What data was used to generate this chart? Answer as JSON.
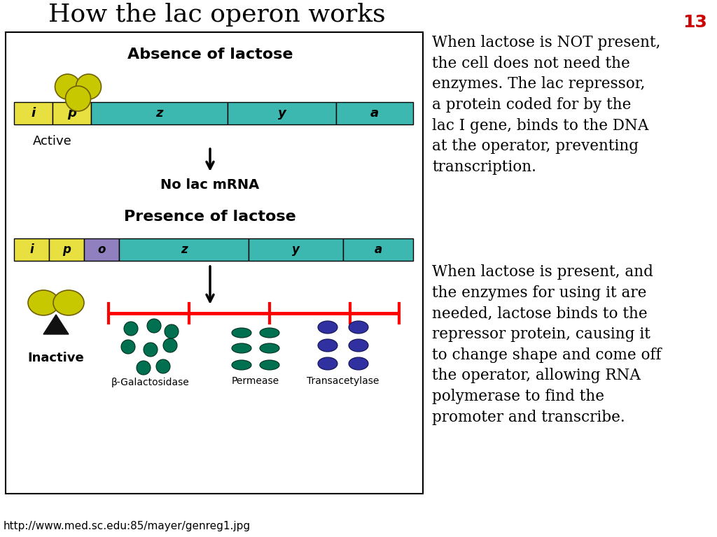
{
  "title": "How the lac operon works",
  "title_fontsize": 26,
  "page_number": "13",
  "page_number_color": "#cc0000",
  "background_color": "#ffffff",
  "url_text": "http://www.med.sc.edu:85/mayer/genreg1.jpg",
  "right_text_para1": "When lactose is NOT present,\nthe cell does not need the\nenzymes. The lac repressor,\na protein coded for by the\nlac I gene, binds to the DNA\nat the operator, preventing\ntranscription.",
  "right_text_para2": "When lactose is present, and\nthe enzymes for using it are\nneeded, lactose binds to the\nrepressor protein, causing it\nto change shape and come off\nthe operator, allowing RNA\npolymerase to find the\npromoter and transcribe.",
  "teal_color": "#3db8b0",
  "yellow_color": "#e8e040",
  "purple_color": "#9080c0",
  "section1_title": "Absence of lactose",
  "section2_title": "Presence of lactose",
  "gene_labels_top": [
    "i",
    "p",
    "z",
    "y",
    "a"
  ],
  "gene_labels_bottom": [
    "i",
    "p",
    "o",
    "z",
    "y",
    "a"
  ],
  "active_label": "Active",
  "inactive_label": "Inactive",
  "no_mRNA_label": "No lac mRNA",
  "enzyme_labels": [
    "β-Galactosidase",
    "Permease",
    "Transacetylase"
  ],
  "green_dot_color": "#007050",
  "blue_oval_color": "#3030a0",
  "repressor_fill": "#c8c800",
  "repressor_edge": "#706000"
}
